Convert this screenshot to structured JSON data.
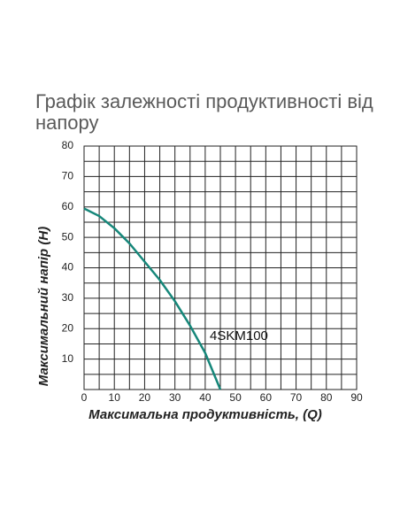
{
  "chart_data": {
    "type": "line",
    "title_lines": [
      "Графік залежності продуктивності від",
      "напору"
    ],
    "x_label": "Максимальна продуктивність, (Q)",
    "y_label": "Максимальний напір (H)",
    "annotation": "4SKM100",
    "series": [
      {
        "name": "4SKM100",
        "color": "#16877a",
        "x": [
          0,
          5,
          10,
          15,
          20,
          25,
          30,
          35,
          40,
          45
        ],
        "values": [
          59.5,
          57,
          53,
          48,
          42,
          36,
          29,
          21,
          12,
          0
        ]
      }
    ],
    "xlim": [
      0,
      90
    ],
    "xticks": [
      0,
      10,
      20,
      30,
      40,
      50,
      60,
      70,
      80,
      90
    ],
    "ylim": [
      0,
      80
    ],
    "yticks": [
      10,
      20,
      30,
      40,
      50,
      60,
      70,
      80
    ],
    "grid": true,
    "minor_grid": true
  }
}
